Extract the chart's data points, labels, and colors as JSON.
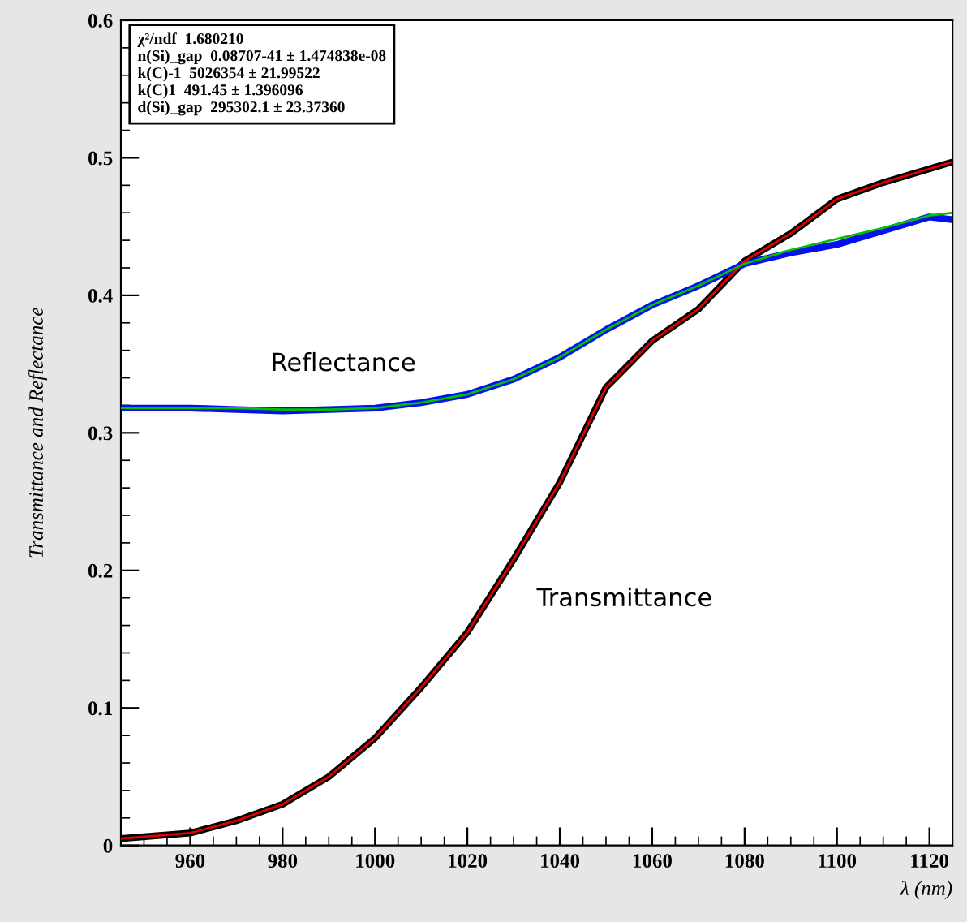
{
  "chart_data": {
    "type": "line",
    "ylabel": "Transmittance and Reflectance",
    "xlabel": "λ (nm)",
    "annotations": [
      "Reflectance",
      "Transmittance",
      "χ²/ndf  1.680210",
      "n(Si)_gap  0.08707-41 ± 1.474838e-08",
      "k(C)-1  5026354 ± 21.99522",
      "k(C)1  491.45 ± 1.396096",
      "d(Si)_gap  295302.1 ± 23.37360"
    ],
    "x": [
      945,
      960,
      970,
      980,
      990,
      1000,
      1010,
      1020,
      1030,
      1040,
      1050,
      1060,
      1070,
      1080,
      1090,
      1100,
      1110,
      1120,
      1125
    ],
    "series": [
      {
        "color": "#000000",
        "values": [
          0.005,
          0.009,
          0.018,
          0.03,
          0.05,
          0.078,
          0.115,
          0.155,
          0.208,
          0.264,
          0.333,
          0.367,
          0.39,
          0.425,
          0.445,
          0.47,
          0.482,
          0.492,
          0.497
        ]
      },
      {
        "color": "#e00000",
        "values": [
          0.005,
          0.009,
          0.018,
          0.03,
          0.05,
          0.078,
          0.115,
          0.155,
          0.208,
          0.264,
          0.333,
          0.367,
          0.39,
          0.425,
          0.445,
          0.47,
          0.482,
          0.492,
          0.497
        ]
      },
      {
        "color": "#00c000",
        "values": [
          0.318,
          0.318,
          0.318,
          0.317,
          0.317,
          0.318,
          0.322,
          0.328,
          0.339,
          0.355,
          0.375,
          0.393,
          0.407,
          0.423,
          0.433,
          0.441,
          0.449,
          0.458,
          0.46
        ]
      },
      {
        "color": "#0010f0",
        "values": [
          0.318,
          0.318,
          0.317,
          0.316,
          0.317,
          0.318,
          0.322,
          0.328,
          0.339,
          0.355,
          0.375,
          0.393,
          0.407,
          0.423,
          0.431,
          0.437,
          0.447,
          0.457,
          0.455
        ]
      }
    ],
    "xlim": [
      945,
      1125
    ],
    "xticks": [
      960,
      980,
      1000,
      1020,
      1040,
      1060,
      1080,
      1100,
      1120
    ],
    "ylim": [
      0,
      0.6
    ],
    "yticks": [
      0,
      0.1,
      0.2,
      0.3,
      0.4,
      0.5,
      0.6
    ],
    "grid": false,
    "legend": false
  }
}
